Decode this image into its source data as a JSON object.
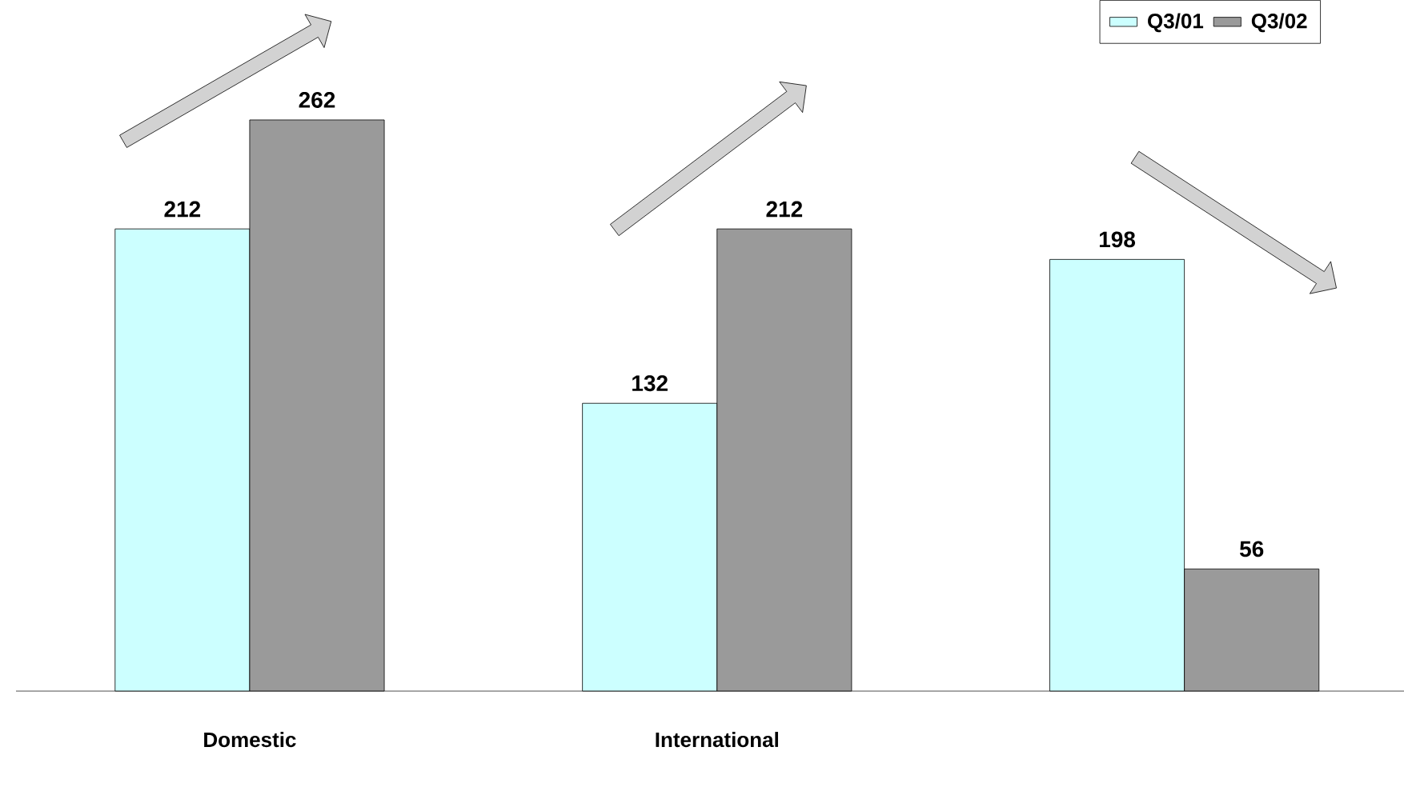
{
  "chart_data": {
    "type": "bar",
    "categories": [
      "Domestic",
      "International",
      null
    ],
    "series": [
      {
        "name": "Q3/01",
        "color": "#ccffff",
        "values": [
          212,
          132,
          198
        ]
      },
      {
        "name": "Q3/02",
        "color": "#9a9a9a",
        "values": [
          262,
          212,
          56
        ]
      }
    ],
    "data_labels": true,
    "legend": "top right"
  }
}
